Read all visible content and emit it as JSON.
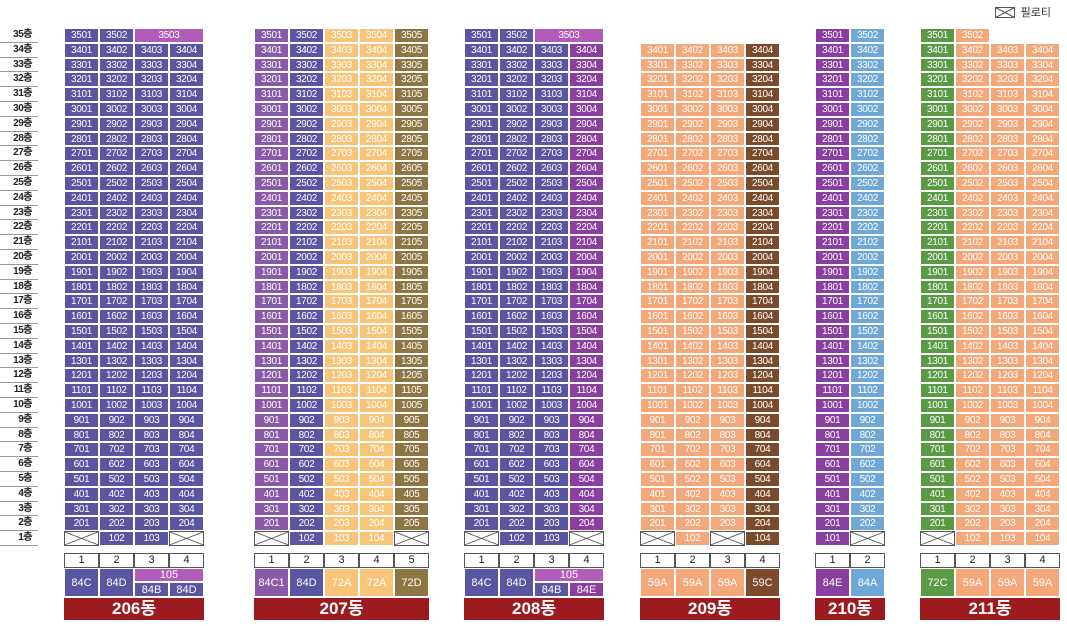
{
  "legend": {
    "label": "필로티"
  },
  "floor_suffix": "층",
  "floor_count": 35,
  "colors": {
    "84C": "#5a55a0",
    "84D": "#5a55a0",
    "84C1": "#8a5aa8",
    "84E": "#8a3fa0",
    "84A": "#6fa8d6",
    "84B": "#5a55a0",
    "105": "#b05cb8",
    "72A": "#f8c47a",
    "72D": "#8d7544",
    "72C": "#5a9a45",
    "59A": "#f4a87a",
    "59C": "#7a4a2a",
    "dong": "#9b1b1f"
  },
  "buildings": [
    {
      "name": "206동",
      "lines": [
        "1",
        "2",
        "3",
        "4"
      ],
      "line_types": [
        "84C",
        "84D",
        "84B",
        "84D"
      ],
      "merged_top": {
        "label": "105",
        "lines": [
          2,
          3
        ]
      },
      "top_floor": 35,
      "top_special": {
        "floor": 35,
        "units": [
          "3501",
          "3502",
          "3503"
        ],
        "spans": [
          1,
          1,
          2
        ],
        "types": [
          "84C",
          "84D",
          "105"
        ]
      },
      "first_floor_units": [
        null,
        "102",
        "103",
        null
      ],
      "legend_types": [
        "84C",
        "84D",
        "84B",
        "84D"
      ],
      "legend_merged": "105"
    },
    {
      "name": "207동",
      "lines": [
        "1",
        "2",
        "3",
        "4",
        "5"
      ],
      "line_types": [
        "84C1",
        "84D",
        "72A",
        "72A",
        "72D"
      ],
      "top_floor": 35,
      "first_floor_units": [
        null,
        "102",
        "103",
        "104",
        null
      ],
      "legend_types": [
        "84C1",
        "84D",
        "72A",
        "72A",
        "72D"
      ]
    },
    {
      "name": "208동",
      "lines": [
        "1",
        "2",
        "3",
        "4"
      ],
      "line_types": [
        "84C",
        "84D",
        "84B",
        "84E"
      ],
      "merged_top": {
        "label": "105",
        "lines": [
          2,
          3
        ]
      },
      "top_floor": 35,
      "top_special": {
        "floor": 35,
        "units": [
          "3501",
          "3502",
          "3503"
        ],
        "spans": [
          1,
          1,
          2
        ],
        "types": [
          "84C",
          "84D",
          "105"
        ]
      },
      "first_floor_units": [
        null,
        "102",
        "103",
        null
      ],
      "legend_types": [
        "84C",
        "84D",
        "84B",
        "84E"
      ],
      "legend_merged": "105"
    },
    {
      "name": "209동",
      "lines": [
        "1",
        "2",
        "3",
        "4"
      ],
      "line_types": [
        "59A",
        "59A",
        "59A",
        "59C"
      ],
      "top_floor": 34,
      "first_floor_units": [
        null,
        "102",
        null,
        "104"
      ],
      "legend_types": [
        "59A",
        "59A",
        "59A",
        "59C"
      ]
    },
    {
      "name": "210동",
      "lines": [
        "1",
        "2"
      ],
      "line_types": [
        "84E",
        "84A"
      ],
      "top_floor": 35,
      "first_floor_units": [
        "101",
        null
      ],
      "legend_types": [
        "84E",
        "84A"
      ]
    },
    {
      "name": "211동",
      "lines": [
        "1",
        "2",
        "3",
        "4"
      ],
      "line_types": [
        "72C",
        "59A",
        "59A",
        "59A"
      ],
      "top_floor": 34,
      "top_special": {
        "floor": 35,
        "units": [
          "3501",
          "3502"
        ],
        "spans": [
          1,
          1
        ],
        "types": [
          "72C",
          "59A"
        ]
      },
      "first_floor_units": [
        null,
        "102",
        "103",
        "104"
      ],
      "legend_types": [
        "72C",
        "59A",
        "59A",
        "59A"
      ]
    }
  ]
}
